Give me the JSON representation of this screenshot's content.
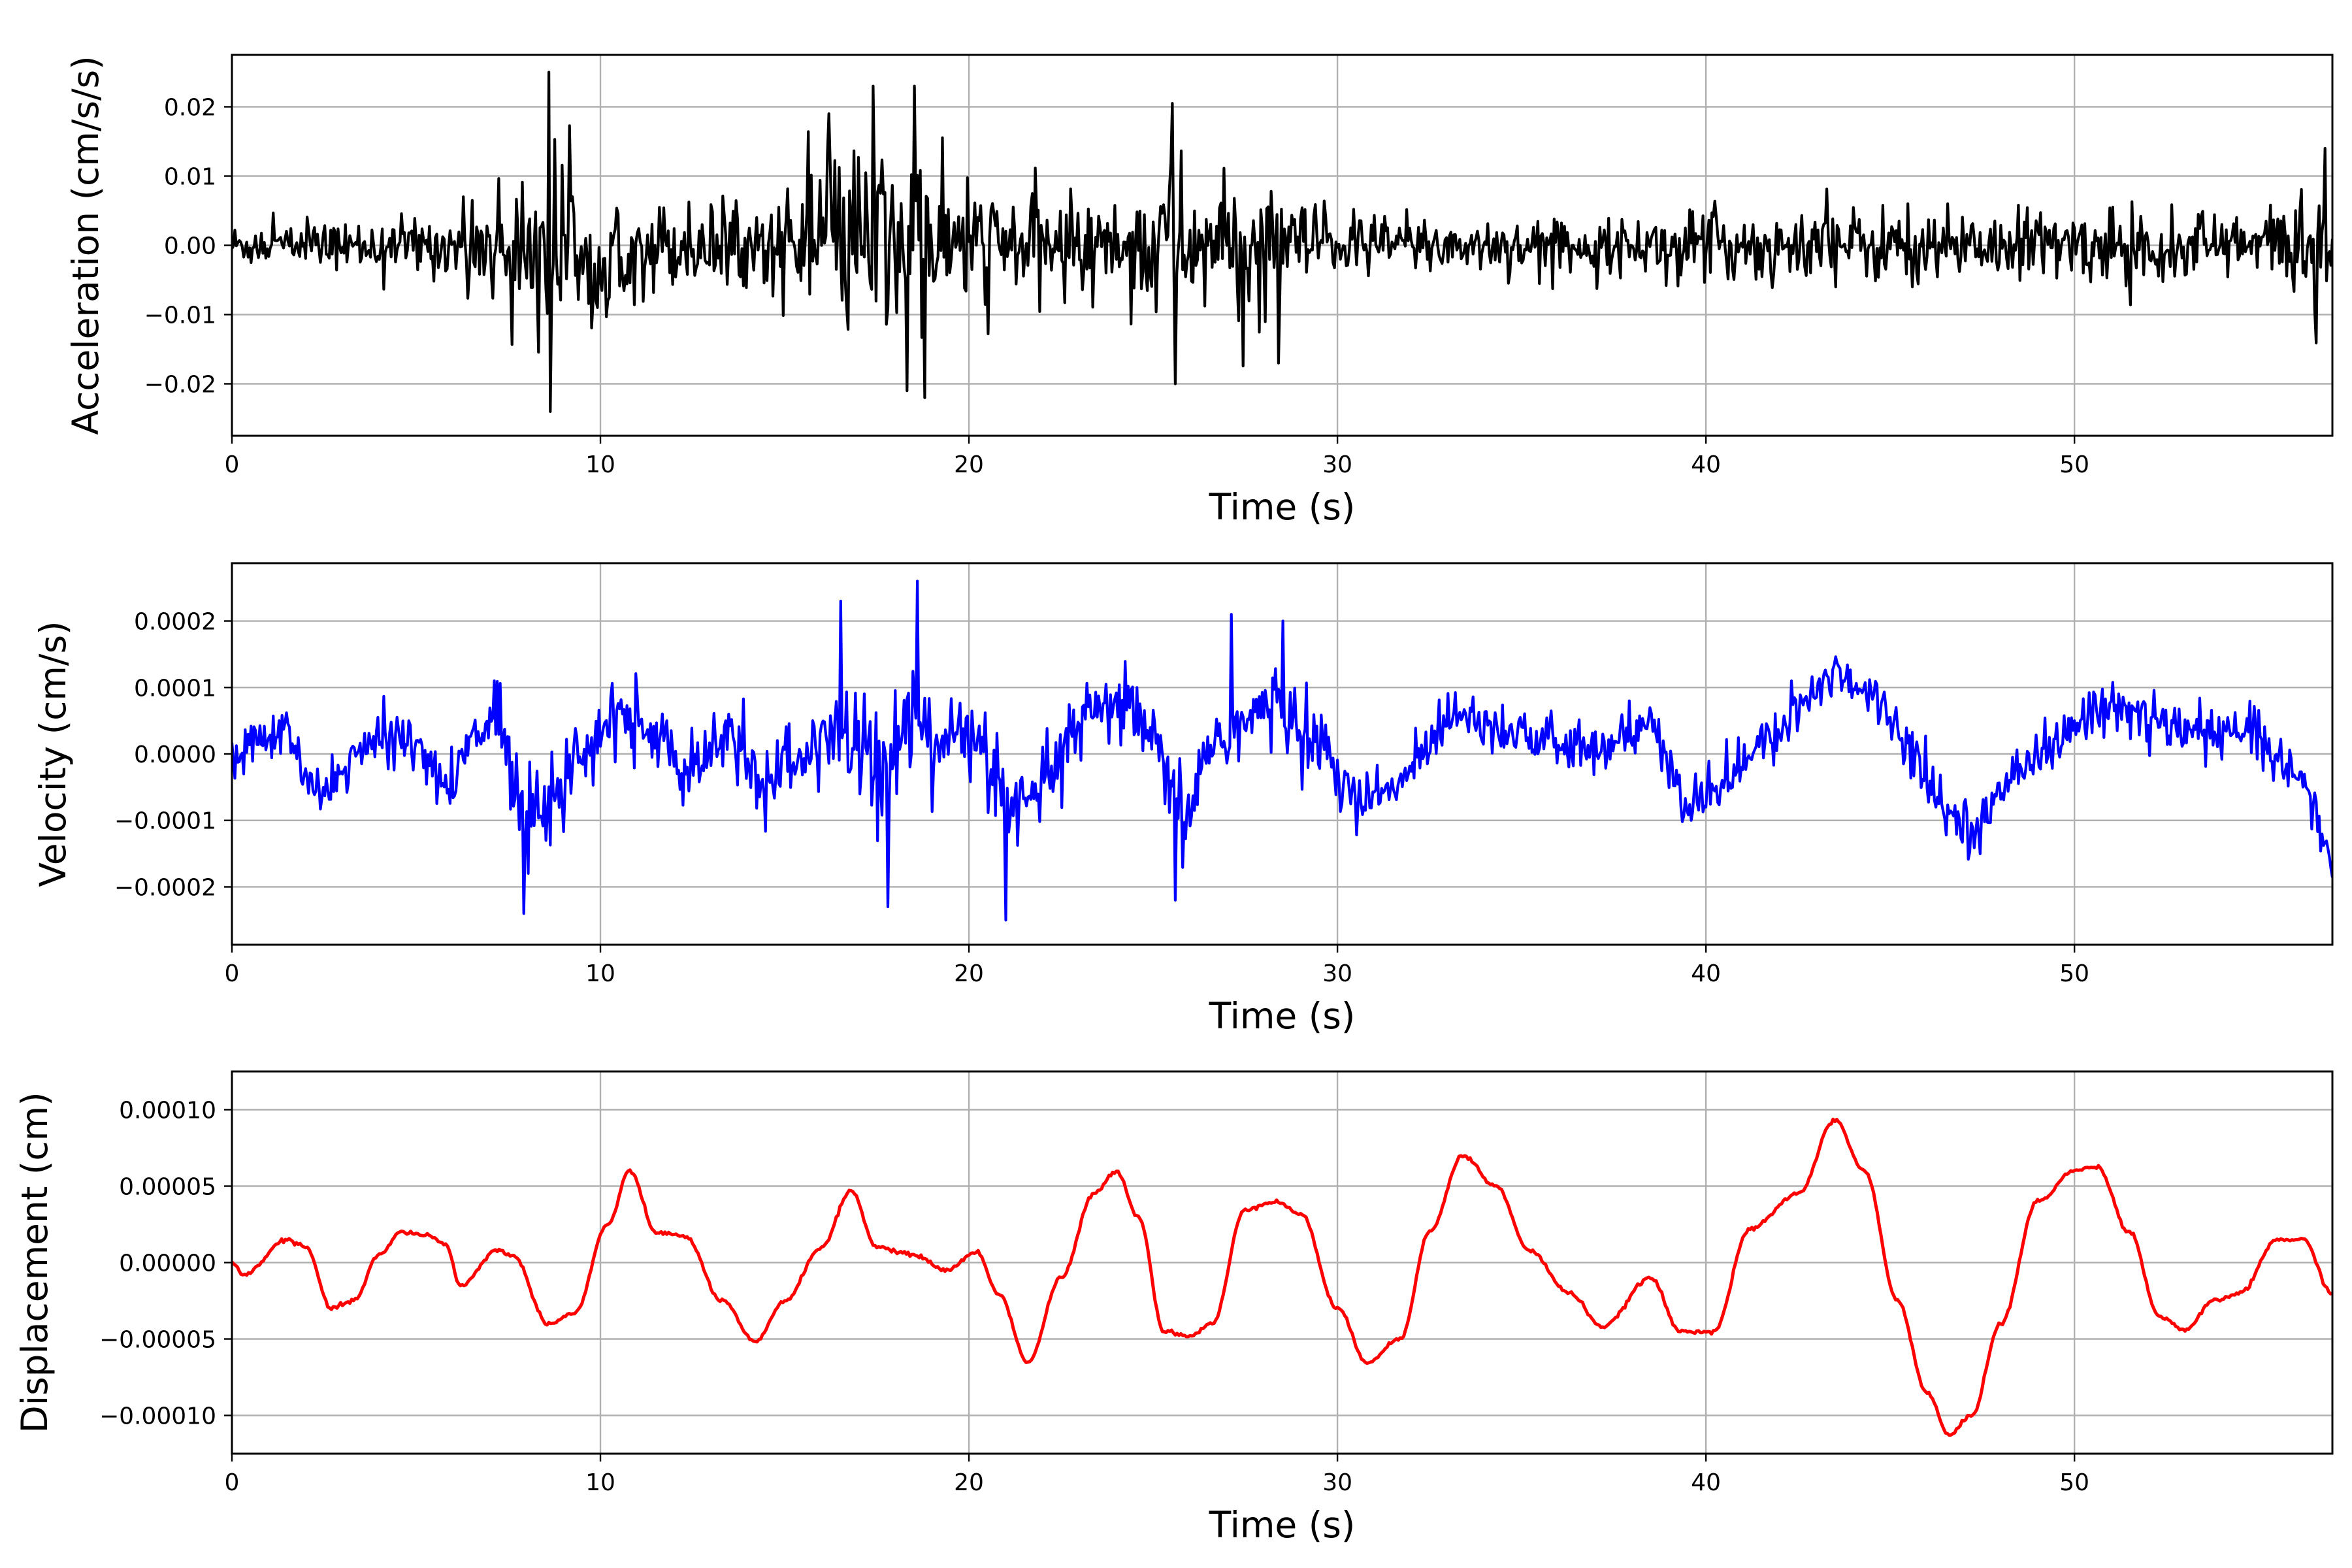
{
  "figure": {
    "background": "#ffffff"
  },
  "chart_data": [
    {
      "type": "line",
      "xlabel": "Time (s)",
      "ylabel": "Acceleration (cm/s/s)",
      "xlim": [
        0,
        57
      ],
      "ylim": [
        -0.0275,
        0.0275
      ],
      "xticks": [
        0,
        10,
        20,
        30,
        40,
        50
      ],
      "yticks": [
        -0.02,
        -0.01,
        0.0,
        0.01,
        0.02
      ],
      "ytick_labels": [
        "−0.02",
        "−0.01",
        "0.00",
        "0.01",
        "0.02"
      ],
      "grid": true,
      "series": [
        {
          "color": "#000000",
          "style": "dense-noise",
          "x_step": 0.04,
          "noise_base": 0.0022,
          "envelope": [
            [
              0,
              0.0035
            ],
            [
              3,
              0.0035
            ],
            [
              6,
              0.005
            ],
            [
              7.5,
              0.011
            ],
            [
              8.7,
              0.018
            ],
            [
              9.5,
              0.009
            ],
            [
              12,
              0.007
            ],
            [
              14,
              0.006
            ],
            [
              15.5,
              0.01
            ],
            [
              17,
              0.016
            ],
            [
              18.5,
              0.016
            ],
            [
              19.5,
              0.009
            ],
            [
              22,
              0.008
            ],
            [
              24,
              0.007
            ],
            [
              25.5,
              0.014
            ],
            [
              26.5,
              0.009
            ],
            [
              28,
              0.01
            ],
            [
              29,
              0.007
            ],
            [
              31,
              0.005
            ],
            [
              36,
              0.004
            ],
            [
              38,
              0.004
            ],
            [
              40,
              0.006
            ],
            [
              45,
              0.006
            ],
            [
              50,
              0.0055
            ],
            [
              55,
              0.006
            ],
            [
              57,
              0.009
            ]
          ],
          "spikes": [
            [
              8.6,
              0.025
            ],
            [
              8.65,
              -0.024
            ],
            [
              17.4,
              0.023
            ],
            [
              18.5,
              0.023
            ],
            [
              18.8,
              -0.022
            ],
            [
              18.3,
              -0.021
            ],
            [
              25.5,
              0.0205
            ],
            [
              25.6,
              -0.02
            ],
            [
              28.4,
              -0.017
            ],
            [
              16.2,
              0.019
            ],
            [
              56.8,
              0.014
            ]
          ]
        }
      ]
    },
    {
      "type": "line",
      "xlabel": "Time (s)",
      "ylabel": "Velocity (cm/s)",
      "xlim": [
        0,
        57
      ],
      "ylim": [
        -0.000287,
        0.000287
      ],
      "xticks": [
        0,
        10,
        20,
        30,
        40,
        50
      ],
      "yticks": [
        -0.0002,
        -0.0001,
        0.0,
        0.0001,
        0.0002
      ],
      "ytick_labels": [
        "−0.0002",
        "−0.0001",
        "0.0000",
        "0.0001",
        "0.0002"
      ],
      "grid": true,
      "series": [
        {
          "color": "#0000ff",
          "style": "noisy-trend",
          "x_step": 0.04,
          "trend": [
            [
              0,
              -3e-05
            ],
            [
              0.5,
              2e-05
            ],
            [
              1.5,
              3e-05
            ],
            [
              2.3,
              -7e-05
            ],
            [
              3,
              -2e-05
            ],
            [
              4,
              2e-05
            ],
            [
              5,
              3e-05
            ],
            [
              5.9,
              -7e-05
            ],
            [
              6.5,
              3e-05
            ],
            [
              7.2,
              5e-05
            ],
            [
              8,
              -8e-05
            ],
            [
              9,
              -4e-05
            ],
            [
              10.5,
              6e-05
            ],
            [
              11.5,
              3e-05
            ],
            [
              12.5,
              -4e-05
            ],
            [
              13.5,
              3e-05
            ],
            [
              14.5,
              -4e-05
            ],
            [
              15.5,
              -1e-05
            ],
            [
              16.5,
              4e-05
            ],
            [
              17.5,
              -2e-05
            ],
            [
              18.5,
              5e-05
            ],
            [
              19.5,
              3e-05
            ],
            [
              20.3,
              1e-05
            ],
            [
              21.2,
              -0.00011
            ],
            [
              22,
              -4e-05
            ],
            [
              23,
              4e-05
            ],
            [
              24,
              8e-05
            ],
            [
              25,
              2e-05
            ],
            [
              25.8,
              -0.00011
            ],
            [
              26.5,
              1e-05
            ],
            [
              27.5,
              5e-05
            ],
            [
              28.5,
              7e-05
            ],
            [
              29.5,
              2e-05
            ],
            [
              30.5,
              -7e-05
            ],
            [
              31.5,
              -6e-05
            ],
            [
              32.5,
              2e-05
            ],
            [
              33.2,
              7e-05
            ],
            [
              34.5,
              4e-05
            ],
            [
              36,
              1e-05
            ],
            [
              37.5,
              1e-05
            ],
            [
              38.5,
              5e-05
            ],
            [
              39.5,
              -9e-05
            ],
            [
              40.5,
              -4e-05
            ],
            [
              41.5,
              1e-05
            ],
            [
              42.5,
              6e-05
            ],
            [
              43.5,
              0.00013
            ],
            [
              44.5,
              9e-05
            ],
            [
              45.5,
              2e-05
            ],
            [
              46.5,
              -9e-05
            ],
            [
              47.5,
              -0.00011
            ],
            [
              48.5,
              -1e-05
            ],
            [
              49.5,
              1e-05
            ],
            [
              50.5,
              7e-05
            ],
            [
              51.5,
              7e-05
            ],
            [
              52.5,
              4e-05
            ],
            [
              53.5,
              3e-05
            ],
            [
              55,
              3e-05
            ],
            [
              56.3,
              -5e-05
            ],
            [
              57,
              -0.00017
            ]
          ],
          "noise_base": 1.8e-05,
          "envelope": [
            [
              0,
              1
            ],
            [
              7,
              1.2
            ],
            [
              8,
              2.2
            ],
            [
              9.5,
              1.4
            ],
            [
              15.5,
              1.5
            ],
            [
              17,
              2.6
            ],
            [
              19.5,
              2
            ],
            [
              21.5,
              1.5
            ],
            [
              26,
              1.6
            ],
            [
              28.5,
              1.9
            ],
            [
              30,
              1.1
            ],
            [
              57,
              1.0
            ]
          ],
          "spikes": [
            [
              18.6,
              0.00026
            ],
            [
              21,
              -0.00025
            ],
            [
              7.9,
              -0.00024
            ],
            [
              16.5,
              0.00023
            ],
            [
              17.8,
              -0.00023
            ],
            [
              27.1,
              0.00021
            ],
            [
              28.5,
              0.0002
            ],
            [
              25.6,
              -0.00022
            ]
          ]
        }
      ]
    },
    {
      "type": "line",
      "xlabel": "Time (s)",
      "ylabel": "Displacement (cm)",
      "xlim": [
        0,
        57
      ],
      "ylim": [
        -0.000125,
        0.000125
      ],
      "xticks": [
        0,
        10,
        20,
        30,
        40,
        50
      ],
      "yticks": [
        -0.0001,
        -5e-05,
        0.0,
        5e-05,
        0.0001
      ],
      "ytick_labels": [
        "−0.00010",
        "−0.00005",
        "0.00000",
        "0.00005",
        "0.00010"
      ],
      "grid": true,
      "series": [
        {
          "color": "#ff0000",
          "style": "smooth",
          "points": [
            [
              0,
              0
            ],
            [
              0.3,
              -8e-06
            ],
            [
              1.5,
              1.5e-05
            ],
            [
              2,
              1e-05
            ],
            [
              2.7,
              -3e-05
            ],
            [
              3.3,
              -2.5e-05
            ],
            [
              4,
              5e-06
            ],
            [
              4.6,
              2e-05
            ],
            [
              5.3,
              1.8e-05
            ],
            [
              5.8,
              1.2e-05
            ],
            [
              6.2,
              -1.5e-05
            ],
            [
              7.2,
              8e-06
            ],
            [
              7.6,
              5e-06
            ],
            [
              8.6,
              -4e-05
            ],
            [
              9.3,
              -3.3e-05
            ],
            [
              10.2,
              2.5e-05
            ],
            [
              10.8,
              6e-05
            ],
            [
              11.5,
              2e-05
            ],
            [
              12.3,
              1.7e-05
            ],
            [
              13.3,
              -2.5e-05
            ],
            [
              14.2,
              -5.2e-05
            ],
            [
              15,
              -2.5e-05
            ],
            [
              16,
              1e-05
            ],
            [
              16.8,
              4.7e-05
            ],
            [
              17.5,
              1e-05
            ],
            [
              18.5,
              5e-06
            ],
            [
              19.4,
              -5e-06
            ],
            [
              20.2,
              7e-06
            ],
            [
              20.8,
              -2e-05
            ],
            [
              21.6,
              -6.5e-05
            ],
            [
              22.5,
              -1e-05
            ],
            [
              23.4,
              4.5e-05
            ],
            [
              24,
              6e-05
            ],
            [
              24.6,
              3e-05
            ],
            [
              25.3,
              -4.5e-05
            ],
            [
              26,
              -4.8e-05
            ],
            [
              26.6,
              -4e-05
            ],
            [
              27.5,
              3.5e-05
            ],
            [
              28.3,
              4e-05
            ],
            [
              29,
              3.2e-05
            ],
            [
              30,
              -3e-05
            ],
            [
              30.8,
              -6.5e-05
            ],
            [
              31.7,
              -5e-05
            ],
            [
              32.5,
              2e-05
            ],
            [
              33.4,
              7e-05
            ],
            [
              34.3,
              5e-05
            ],
            [
              35.2,
              8e-06
            ],
            [
              36.3,
              -2e-05
            ],
            [
              37.2,
              -4.2e-05
            ],
            [
              38.5,
              -1e-05
            ],
            [
              39.3,
              -4.5e-05
            ],
            [
              40.2,
              -4.5e-05
            ],
            [
              41.2,
              2.2e-05
            ],
            [
              42.5,
              4.5e-05
            ],
            [
              43.5,
              9.3e-05
            ],
            [
              44.3,
              6e-05
            ],
            [
              45.2,
              -2.5e-05
            ],
            [
              46,
              -8.5e-05
            ],
            [
              46.6,
              -0.000113
            ],
            [
              47.2,
              -0.0001
            ],
            [
              48,
              -4e-05
            ],
            [
              49,
              4e-05
            ],
            [
              50,
              6e-05
            ],
            [
              50.6,
              6.3e-05
            ],
            [
              51.5,
              2e-05
            ],
            [
              52.3,
              -3.5e-05
            ],
            [
              53,
              -4.4e-05
            ],
            [
              53.8,
              -2.5e-05
            ],
            [
              54.5,
              -2e-05
            ],
            [
              55.5,
              1.5e-05
            ],
            [
              56.2,
              1.5e-05
            ],
            [
              57,
              -2e-05
            ]
          ]
        }
      ]
    }
  ]
}
